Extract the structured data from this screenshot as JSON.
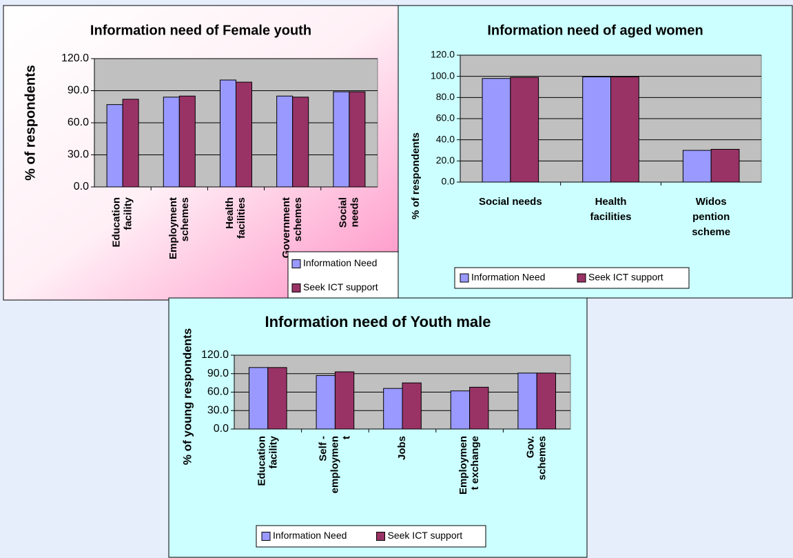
{
  "chart_data": [
    {
      "type": "bar",
      "title": "Information need of Female youth",
      "y_label": "% of respondents",
      "categories": [
        "Education\nfacility",
        "Employment\nschemes",
        "Health\nfacilities",
        "Government\nschemes",
        "Social\nneeds"
      ],
      "series": [
        {
          "name": "Information Need",
          "color": "#9999ff",
          "values": [
            77,
            84,
            100,
            85,
            89
          ]
        },
        {
          "name": "Seek ICT support",
          "color": "#993366",
          "values": [
            82,
            85,
            98,
            84,
            89
          ]
        }
      ],
      "ylim": [
        0,
        120
      ],
      "yticks": [
        {
          "value": 0,
          "label": "0.0"
        },
        {
          "value": 30,
          "label": "30.0"
        },
        {
          "value": 60,
          "label": "60.0"
        },
        {
          "value": 90,
          "label": "90.0"
        },
        {
          "value": 120,
          "label": "120.0"
        }
      ],
      "grid": true,
      "legend": "lower right",
      "background": "gradient"
    },
    {
      "type": "bar",
      "title": "Information need of aged women",
      "y_label": "% of respondents",
      "categories": [
        "Social needs",
        "Health\nfacilities",
        "Widos\npention\nscheme"
      ],
      "series": [
        {
          "name": "Information Need",
          "color": "#9999ff",
          "values": [
            98,
            99.5,
            30
          ]
        },
        {
          "name": "Seek ICT support",
          "color": "#993366",
          "values": [
            99,
            99.5,
            31
          ]
        }
      ],
      "ylim": [
        0,
        120
      ],
      "yticks": [
        {
          "value": 0,
          "label": "0.0"
        },
        {
          "value": 20,
          "label": "20.0"
        },
        {
          "value": 40,
          "label": "40.0"
        },
        {
          "value": 60,
          "label": "60.0"
        },
        {
          "value": 80,
          "label": "80.0"
        },
        {
          "value": 100,
          "label": "100.0"
        },
        {
          "value": 120,
          "label": "120.0"
        }
      ],
      "grid": true,
      "legend": "bottom",
      "background": "#ccffff"
    },
    {
      "type": "bar",
      "title": "Information need of Youth male",
      "y_label": "% of young respondents",
      "categories": [
        "Education\nfacility",
        "Self -\nemploymen\nt",
        "Jobs",
        "Employmen\nt exchange",
        "Gov.\nschemes"
      ],
      "series": [
        {
          "name": "Information Need",
          "color": "#9999ff",
          "values": [
            100,
            87,
            66,
            62,
            91
          ]
        },
        {
          "name": "Seek ICT support",
          "color": "#993366",
          "values": [
            100,
            93,
            75,
            68,
            91
          ]
        }
      ],
      "ylim": [
        0,
        120
      ],
      "yticks": [
        {
          "value": 0,
          "label": "0.0"
        },
        {
          "value": 30,
          "label": "30.0"
        },
        {
          "value": 60,
          "label": "60.0"
        },
        {
          "value": 90,
          "label": "90.0"
        },
        {
          "value": 120,
          "label": "120.0"
        }
      ],
      "grid": true,
      "legend": "bottom",
      "background": "#ccffff"
    }
  ]
}
